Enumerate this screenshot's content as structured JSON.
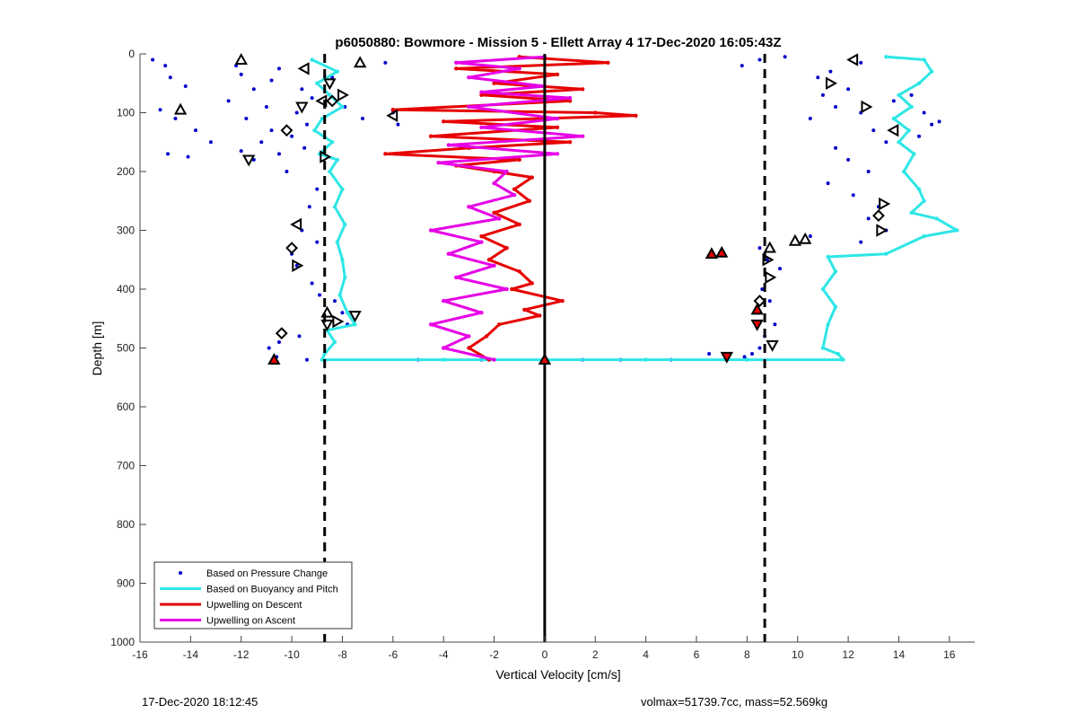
{
  "chart_data": {
    "type": "scatter",
    "title": "p6050880: Bowmore - Mission 5 - Ellett Array 4 17-Dec-2020 16:05:43Z",
    "xlabel": "Vertical Velocity [cm/s]",
    "ylabel": "Depth [m]",
    "xlim": [
      -16,
      17
    ],
    "ylim": [
      0,
      1000
    ],
    "y_reversed": true,
    "xticks": [
      -16,
      -14,
      -12,
      -10,
      -8,
      -6,
      -4,
      -2,
      0,
      2,
      4,
      6,
      8,
      10,
      12,
      14,
      16
    ],
    "yticks": [
      0,
      100,
      200,
      300,
      400,
      500,
      600,
      700,
      800,
      900,
      1000
    ],
    "grid": false,
    "legend_position": "bottom-left",
    "vlines": {
      "solid": [
        0
      ],
      "dashed": [
        -8.7,
        8.7
      ]
    },
    "series": [
      {
        "name": "Based on Pressure Change",
        "kind": "points",
        "color": "#0000cc",
        "points": [
          [
            -15.5,
            10
          ],
          [
            -15,
            20
          ],
          [
            -14.8,
            40
          ],
          [
            -14.2,
            55
          ],
          [
            -15.2,
            95
          ],
          [
            -14.6,
            110
          ],
          [
            -13.8,
            130
          ],
          [
            -13.2,
            150
          ],
          [
            -14.9,
            170
          ],
          [
            -14.1,
            175
          ],
          [
            -12.2,
            20
          ],
          [
            -12.0,
            35
          ],
          [
            -11.5,
            60
          ],
          [
            -12.5,
            80
          ],
          [
            -11.0,
            90
          ],
          [
            -11.8,
            110
          ],
          [
            -10.8,
            130
          ],
          [
            -11.2,
            150
          ],
          [
            -12.0,
            165
          ],
          [
            -11.5,
            180
          ],
          [
            -10.5,
            170
          ],
          [
            -10.2,
            200
          ],
          [
            -10.8,
            45
          ],
          [
            -10.5,
            25
          ],
          [
            -9.6,
            60
          ],
          [
            -9.2,
            75
          ],
          [
            -9.8,
            100
          ],
          [
            -9.4,
            120
          ],
          [
            -10.0,
            140
          ],
          [
            -9.5,
            160
          ],
          [
            -9.0,
            230
          ],
          [
            -9.3,
            260
          ],
          [
            -9.6,
            300
          ],
          [
            -9.0,
            320
          ],
          [
            -10.0,
            340
          ],
          [
            -9.8,
            360
          ],
          [
            -9.2,
            390
          ],
          [
            -8.9,
            410
          ],
          [
            -8.3,
            420
          ],
          [
            -8.0,
            440
          ],
          [
            -7.8,
            460
          ],
          [
            -8.6,
            470
          ],
          [
            -9.7,
            480
          ],
          [
            -10.5,
            490
          ],
          [
            -10.9,
            500
          ],
          [
            -10.6,
            515
          ],
          [
            -9.4,
            520
          ],
          [
            -8.4,
            40
          ],
          [
            -7.9,
            90
          ],
          [
            -7.2,
            110
          ],
          [
            -6.0,
            100
          ],
          [
            -5.8,
            120
          ],
          [
            -6.3,
            15
          ],
          [
            -5.0,
            520
          ],
          [
            -2.5,
            520
          ],
          [
            1.5,
            520
          ],
          [
            3.0,
            520
          ],
          [
            5.0,
            520
          ],
          [
            6.5,
            510
          ],
          [
            8.5,
            330
          ],
          [
            8.8,
            350
          ],
          [
            9.3,
            365
          ],
          [
            8.6,
            400
          ],
          [
            8.9,
            420
          ],
          [
            8.4,
            440
          ],
          [
            9.1,
            460
          ],
          [
            8.7,
            480
          ],
          [
            8.5,
            500
          ],
          [
            8.2,
            510
          ],
          [
            7.9,
            515
          ],
          [
            7.8,
            20
          ],
          [
            8.5,
            10
          ],
          [
            9.5,
            5
          ],
          [
            10.8,
            40
          ],
          [
            11.3,
            30
          ],
          [
            11.0,
            70
          ],
          [
            11.5,
            90
          ],
          [
            10.5,
            110
          ],
          [
            12.0,
            60
          ],
          [
            12.5,
            100
          ],
          [
            13.0,
            130
          ],
          [
            13.5,
            150
          ],
          [
            11.5,
            160
          ],
          [
            12.0,
            180
          ],
          [
            12.8,
            200
          ],
          [
            11.2,
            220
          ],
          [
            12.2,
            240
          ],
          [
            13.2,
            260
          ],
          [
            12.8,
            280
          ],
          [
            13.5,
            300
          ],
          [
            12.5,
            320
          ],
          [
            10.5,
            310
          ],
          [
            15.0,
            100
          ],
          [
            15.3,
            120
          ],
          [
            14.8,
            140
          ],
          [
            15.6,
            115
          ],
          [
            13.8,
            80
          ],
          [
            14.5,
            70
          ],
          [
            12.5,
            15
          ]
        ]
      },
      {
        "name": "Based on Buoyancy and Pitch",
        "kind": "line",
        "color": "#2ee6e6",
        "points": [
          [
            -9.2,
            10
          ],
          [
            -8.2,
            30
          ],
          [
            -9.0,
            50
          ],
          [
            -8.5,
            70
          ],
          [
            -8.0,
            90
          ],
          [
            -8.8,
            110
          ],
          [
            -9.1,
            130
          ],
          [
            -8.4,
            150
          ],
          [
            -8.9,
            170
          ],
          [
            -8.2,
            180
          ],
          [
            -8.5,
            200
          ],
          [
            -8.0,
            230
          ],
          [
            -8.3,
            260
          ],
          [
            -7.9,
            290
          ],
          [
            -8.2,
            320
          ],
          [
            -8.0,
            350
          ],
          [
            -7.9,
            380
          ],
          [
            -8.1,
            410
          ],
          [
            -7.8,
            440
          ],
          [
            -7.5,
            460
          ],
          [
            -8.6,
            470
          ],
          [
            -8.3,
            490
          ],
          [
            -8.7,
            510
          ],
          [
            -8.8,
            520
          ],
          [
            -4.0,
            520
          ],
          [
            0.0,
            520
          ],
          [
            4.0,
            520
          ],
          [
            8.0,
            520
          ],
          [
            11.8,
            520
          ],
          [
            11.6,
            510
          ],
          [
            11.0,
            500
          ],
          [
            11.2,
            460
          ],
          [
            11.5,
            430
          ],
          [
            11.0,
            400
          ],
          [
            11.5,
            370
          ],
          [
            11.2,
            345
          ],
          [
            13.5,
            340
          ],
          [
            15.0,
            310
          ],
          [
            16.3,
            300
          ],
          [
            15.5,
            280
          ],
          [
            14.5,
            270
          ],
          [
            15.0,
            250
          ],
          [
            14.8,
            230
          ],
          [
            14.2,
            200
          ],
          [
            14.6,
            170
          ],
          [
            14.0,
            150
          ],
          [
            14.4,
            130
          ],
          [
            13.8,
            110
          ],
          [
            14.5,
            90
          ],
          [
            14.0,
            70
          ],
          [
            14.8,
            50
          ],
          [
            15.3,
            30
          ],
          [
            15.0,
            10
          ],
          [
            13.5,
            5
          ]
        ]
      },
      {
        "name": "Upwelling on Descent",
        "kind": "line",
        "color": "#e60000",
        "points": [
          [
            -1.0,
            5
          ],
          [
            2.5,
            15
          ],
          [
            -3.5,
            25
          ],
          [
            0.5,
            35
          ],
          [
            -2.0,
            50
          ],
          [
            1.5,
            60
          ],
          [
            -2.5,
            70
          ],
          [
            1.0,
            80
          ],
          [
            -6.0,
            95
          ],
          [
            2.0,
            100
          ],
          [
            3.6,
            105
          ],
          [
            -4.0,
            115
          ],
          [
            0.5,
            125
          ],
          [
            -4.5,
            140
          ],
          [
            1.0,
            150
          ],
          [
            -3.0,
            160
          ],
          [
            -6.3,
            170
          ],
          [
            -1.0,
            180
          ],
          [
            -3.5,
            190
          ],
          [
            -2.0,
            200
          ],
          [
            -0.5,
            210
          ],
          [
            -1.2,
            230
          ],
          [
            -0.6,
            250
          ],
          [
            -2.0,
            270
          ],
          [
            -1.0,
            290
          ],
          [
            -2.5,
            310
          ],
          [
            -1.5,
            330
          ],
          [
            -2.2,
            350
          ],
          [
            -1.0,
            370
          ],
          [
            -0.5,
            390
          ],
          [
            -1.3,
            400
          ],
          [
            0.7,
            420
          ],
          [
            -0.8,
            435
          ],
          [
            -0.2,
            445
          ],
          [
            -1.8,
            460
          ],
          [
            -2.3,
            480
          ],
          [
            -3.0,
            500
          ],
          [
            -2.2,
            520
          ]
        ]
      },
      {
        "name": "Upwelling on Ascent",
        "kind": "line",
        "color": "#e600e6",
        "points": [
          [
            0.0,
            5
          ],
          [
            -3.5,
            15
          ],
          [
            -1.0,
            25
          ],
          [
            -3.0,
            40
          ],
          [
            0.0,
            55
          ],
          [
            -2.5,
            65
          ],
          [
            1.0,
            75
          ],
          [
            -3.0,
            90
          ],
          [
            0.5,
            110
          ],
          [
            -2.5,
            125
          ],
          [
            1.5,
            140
          ],
          [
            -3.8,
            155
          ],
          [
            0.5,
            170
          ],
          [
            -4.2,
            185
          ],
          [
            -1.5,
            200
          ],
          [
            -2.0,
            220
          ],
          [
            -1.2,
            240
          ],
          [
            -3.0,
            260
          ],
          [
            -1.8,
            280
          ],
          [
            -4.5,
            300
          ],
          [
            -2.5,
            320
          ],
          [
            -3.8,
            340
          ],
          [
            -2.0,
            360
          ],
          [
            -3.5,
            380
          ],
          [
            -1.5,
            400
          ],
          [
            -4.0,
            420
          ],
          [
            -2.5,
            440
          ],
          [
            -4.5,
            460
          ],
          [
            -3.0,
            480
          ],
          [
            -4.0,
            500
          ],
          [
            -2.0,
            520
          ]
        ]
      }
    ],
    "markers": [
      {
        "shape": "up-tri",
        "fill": "none",
        "points": [
          [
            -12.0,
            10
          ],
          [
            -14.4,
            95
          ],
          [
            -7.3,
            15
          ],
          [
            -8.6,
            440
          ],
          [
            9.9,
            318
          ],
          [
            10.3,
            315
          ],
          [
            8.9,
            330
          ]
        ]
      },
      {
        "shape": "left-tri",
        "fill": "none",
        "points": [
          [
            -9.5,
            25
          ],
          [
            -8.8,
            80
          ],
          [
            -9.8,
            290
          ],
          [
            -6.0,
            105
          ],
          [
            12.2,
            10
          ],
          [
            13.8,
            130
          ]
        ]
      },
      {
        "shape": "right-tri",
        "fill": "none",
        "points": [
          [
            -8.0,
            70
          ],
          [
            -8.7,
            175
          ],
          [
            -9.8,
            360
          ],
          [
            -8.2,
            455
          ],
          [
            8.8,
            350
          ],
          [
            8.9,
            380
          ],
          [
            12.7,
            90
          ],
          [
            11.3,
            50
          ],
          [
            13.4,
            255
          ],
          [
            13.3,
            300
          ]
        ]
      },
      {
        "shape": "down-tri",
        "fill": "none",
        "points": [
          [
            -8.5,
            50
          ],
          [
            -9.6,
            90
          ],
          [
            -11.7,
            180
          ],
          [
            -7.5,
            445
          ],
          [
            -8.6,
            460
          ],
          [
            9.0,
            495
          ]
        ]
      },
      {
        "shape": "diamond",
        "fill": "none",
        "points": [
          [
            -8.4,
            80
          ],
          [
            -10.2,
            130
          ],
          [
            -10.0,
            330
          ],
          [
            -10.4,
            475
          ],
          [
            8.5,
            420
          ],
          [
            13.2,
            275
          ]
        ]
      },
      {
        "shape": "up-tri",
        "fill": "#e60000",
        "points": [
          [
            6.6,
            340
          ],
          [
            7.0,
            338
          ],
          [
            8.4,
            435
          ],
          [
            -10.7,
            520
          ],
          [
            0.0,
            520
          ]
        ]
      },
      {
        "shape": "down-tri",
        "fill": "#e60000",
        "points": [
          [
            7.2,
            515
          ],
          [
            8.4,
            460
          ]
        ]
      }
    ]
  },
  "footer": {
    "left": "17-Dec-2020 18:12:45",
    "right": "volmax=51739.7cc, mass=52.569kg"
  }
}
